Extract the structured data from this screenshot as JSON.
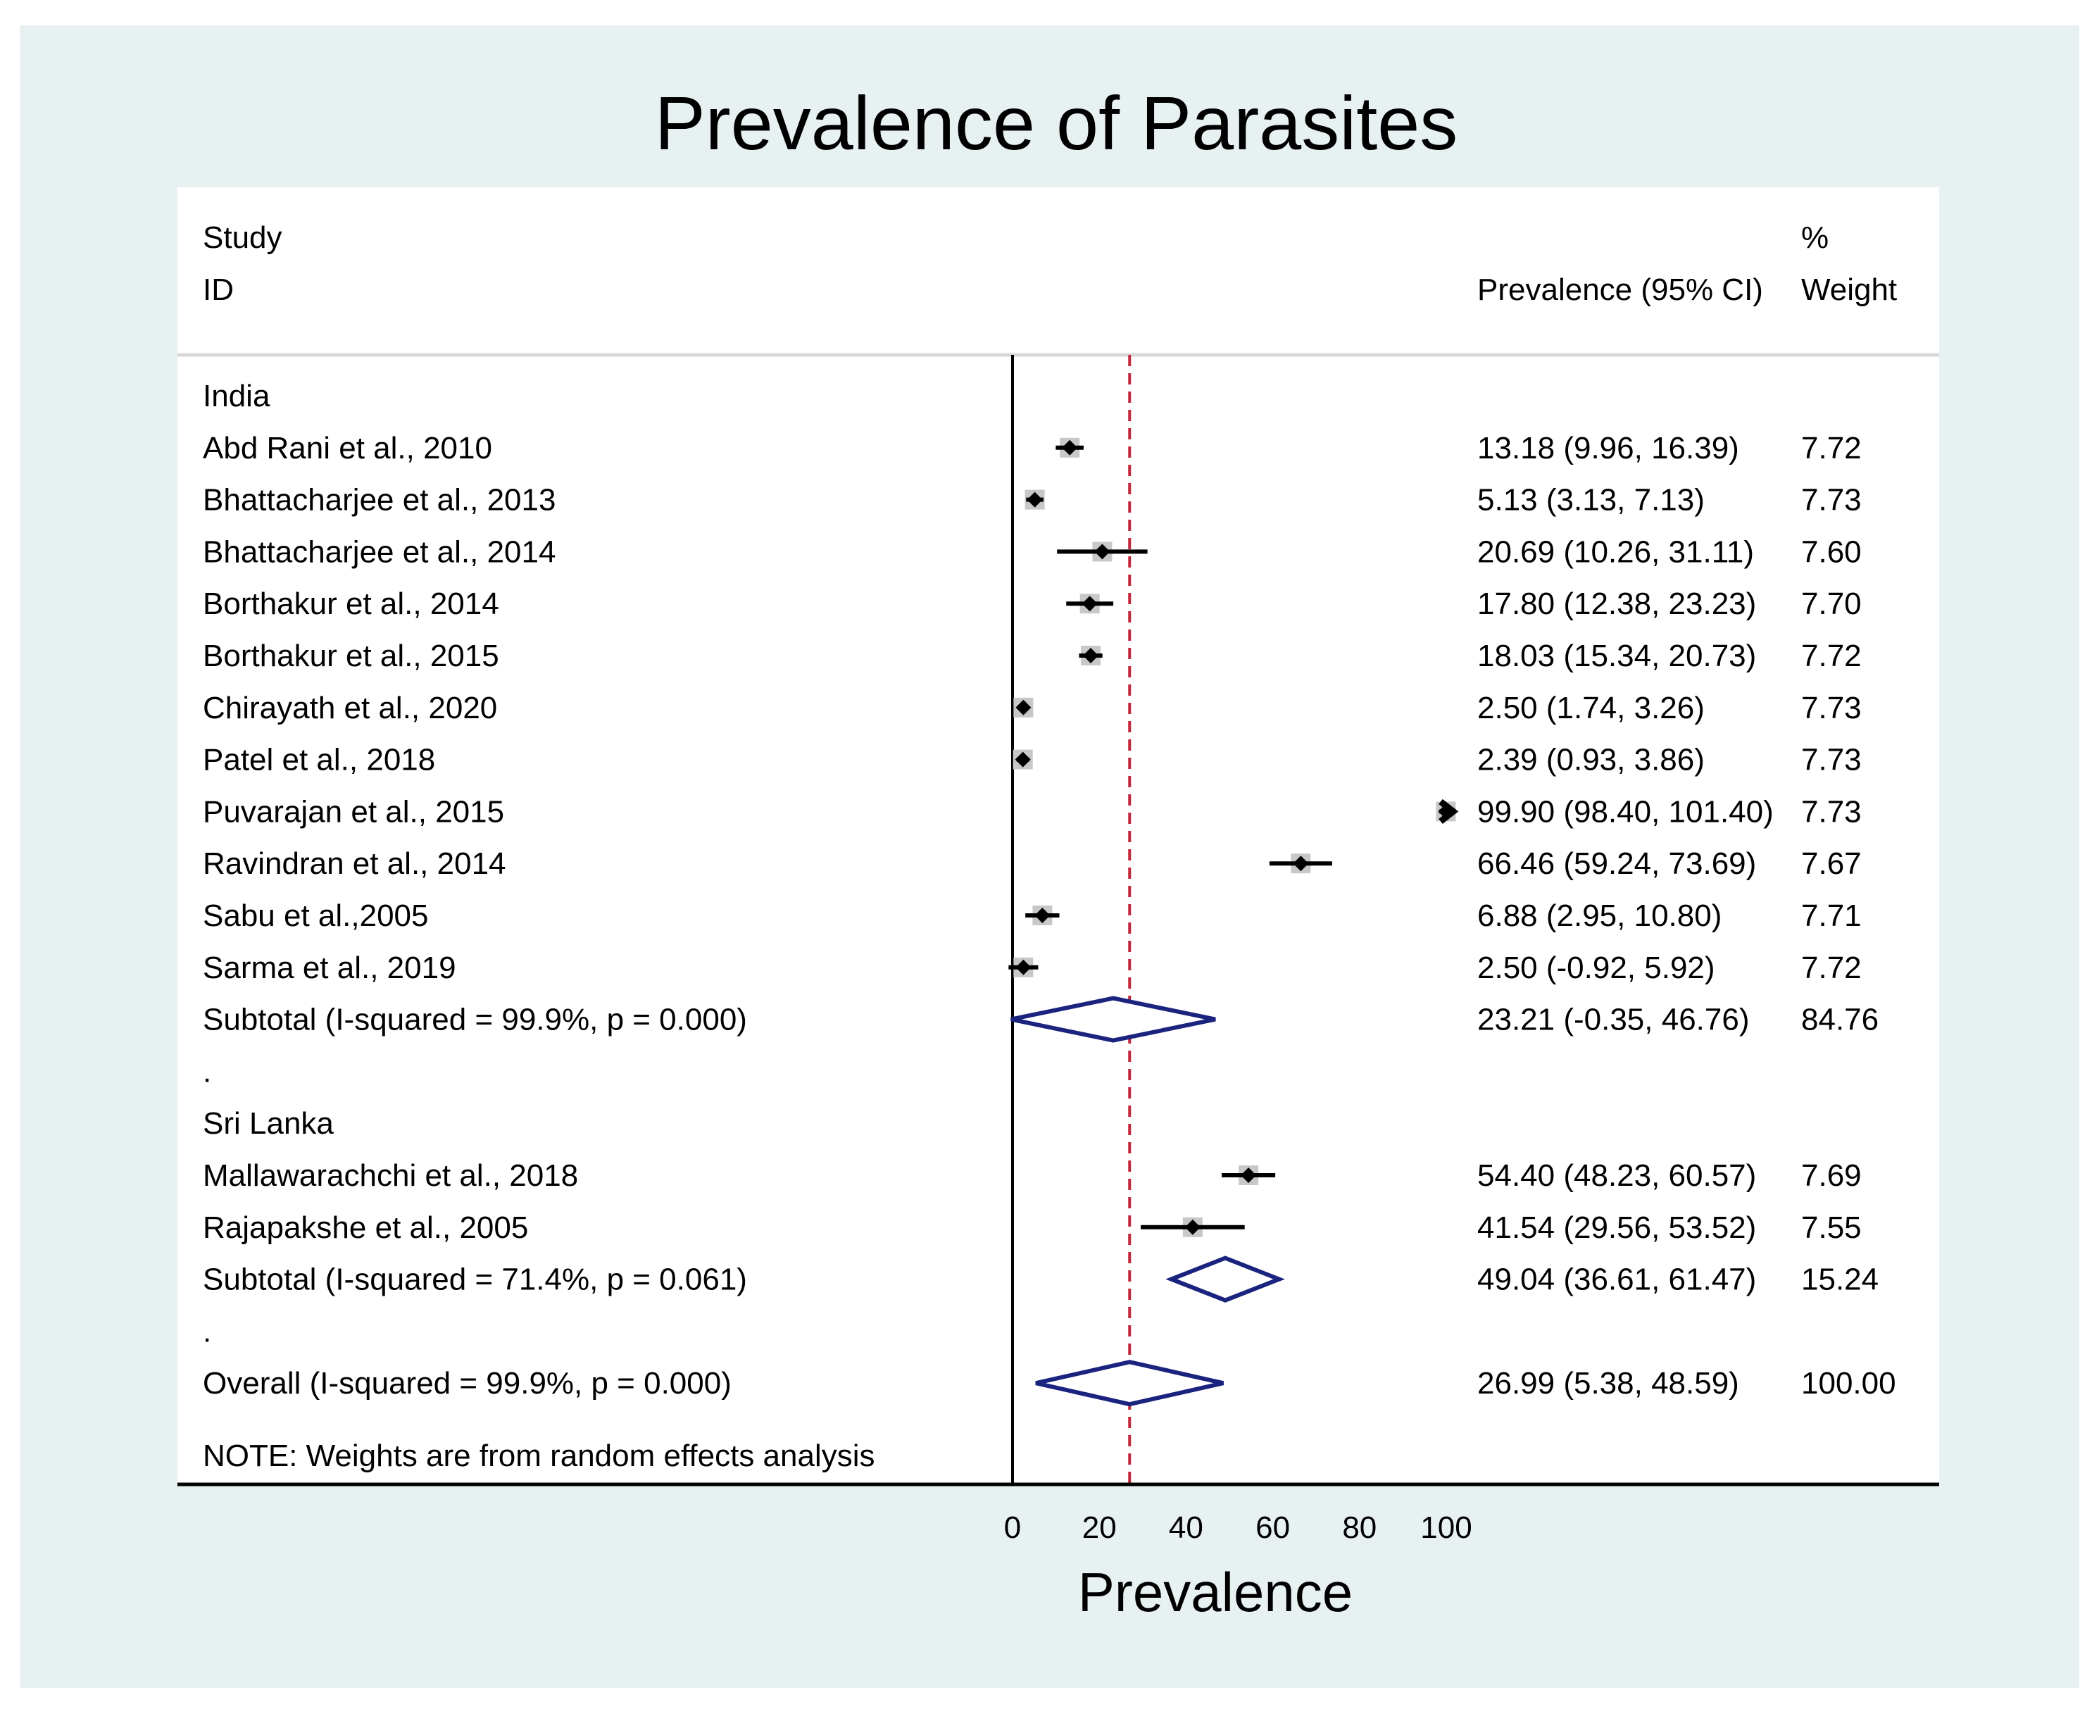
{
  "chart_data": {
    "type": "forest",
    "title": "Prevalence of Parasites",
    "xlabel": "Prevalence",
    "xlim": [
      0,
      100
    ],
    "xticks": [
      "0",
      "20",
      "40",
      "60",
      "80",
      "100"
    ],
    "null_line": 0,
    "overall_line": 26.99,
    "headers": {
      "study": "Study",
      "id": "ID",
      "pct": "%",
      "ci": "Prevalence (95% CI)",
      "weight": "Weight"
    },
    "rows": [
      {
        "kind": "group",
        "label": "India"
      },
      {
        "kind": "study",
        "label": "Abd Rani et al., 2010",
        "est": 13.18,
        "lo": 9.96,
        "hi": 16.39,
        "ci_text": "13.18 (9.96, 16.39)",
        "weight": "7.72"
      },
      {
        "kind": "study",
        "label": "Bhattacharjee et al., 2013",
        "est": 5.13,
        "lo": 3.13,
        "hi": 7.13,
        "ci_text": "5.13 (3.13, 7.13)",
        "weight": "7.73"
      },
      {
        "kind": "study",
        "label": "Bhattacharjee et al., 2014",
        "est": 20.69,
        "lo": 10.26,
        "hi": 31.11,
        "ci_text": "20.69 (10.26, 31.11)",
        "weight": "7.60"
      },
      {
        "kind": "study",
        "label": "Borthakur et al., 2014",
        "est": 17.8,
        "lo": 12.38,
        "hi": 23.23,
        "ci_text": "17.80 (12.38, 23.23)",
        "weight": "7.70"
      },
      {
        "kind": "study",
        "label": "Borthakur et al., 2015",
        "est": 18.03,
        "lo": 15.34,
        "hi": 20.73,
        "ci_text": "18.03 (15.34, 20.73)",
        "weight": "7.72"
      },
      {
        "kind": "study",
        "label": "Chirayath et al., 2020",
        "est": 2.5,
        "lo": 1.74,
        "hi": 3.26,
        "ci_text": "2.50 (1.74, 3.26)",
        "weight": "7.73"
      },
      {
        "kind": "study",
        "label": "Patel et al., 2018",
        "est": 2.39,
        "lo": 0.93,
        "hi": 3.86,
        "ci_text": "2.39 (0.93, 3.86)",
        "weight": "7.73"
      },
      {
        "kind": "study",
        "label": "Puvarajan et al., 2015",
        "est": 99.9,
        "lo": 98.4,
        "hi": 101.4,
        "ci_text": "99.90 (98.40, 101.40)",
        "weight": "7.73"
      },
      {
        "kind": "study",
        "label": "Ravindran et al., 2014",
        "est": 66.46,
        "lo": 59.24,
        "hi": 73.69,
        "ci_text": "66.46 (59.24, 73.69)",
        "weight": "7.67"
      },
      {
        "kind": "study",
        "label": "Sabu et al.,2005",
        "est": 6.88,
        "lo": 2.95,
        "hi": 10.8,
        "ci_text": "6.88 (2.95, 10.80)",
        "weight": "7.71"
      },
      {
        "kind": "study",
        "label": "Sarma et al., 2019",
        "est": 2.5,
        "lo": -0.92,
        "hi": 5.92,
        "ci_text": "2.50 (-0.92, 5.92)",
        "weight": "7.72"
      },
      {
        "kind": "subtotal",
        "label": "Subtotal  (I-squared = 99.9%, p = 0.000)",
        "est": 23.21,
        "lo": -0.35,
        "hi": 46.76,
        "ci_text": "23.21 (-0.35, 46.76)",
        "weight": "84.76"
      },
      {
        "kind": "spacer",
        "label": "."
      },
      {
        "kind": "group",
        "label": "Sri Lanka"
      },
      {
        "kind": "study",
        "label": "Mallawarachchi et al., 2018",
        "est": 54.4,
        "lo": 48.23,
        "hi": 60.57,
        "ci_text": "54.40 (48.23, 60.57)",
        "weight": "7.69"
      },
      {
        "kind": "study",
        "label": "Rajapakshe et al., 2005",
        "est": 41.54,
        "lo": 29.56,
        "hi": 53.52,
        "ci_text": "41.54 (29.56, 53.52)",
        "weight": "7.55"
      },
      {
        "kind": "subtotal",
        "label": "Subtotal  (I-squared = 71.4%, p = 0.061)",
        "est": 49.04,
        "lo": 36.61,
        "hi": 61.47,
        "ci_text": "49.04 (36.61, 61.47)",
        "weight": "15.24"
      },
      {
        "kind": "spacer",
        "label": "."
      },
      {
        "kind": "overall",
        "label": "Overall  (I-squared = 99.9%, p = 0.000)",
        "est": 26.99,
        "lo": 5.38,
        "hi": 48.59,
        "ci_text": "26.99 (5.38, 48.59)",
        "weight": "100.00"
      }
    ],
    "note": "NOTE: Weights are from random effects analysis"
  },
  "colors": {
    "background": "#e8f1f2",
    "panel": "#ffffff",
    "title": "#1a2f5a",
    "diamond": "#1a237e",
    "box": "#c8c8c8",
    "ref_line": "#c0273a"
  }
}
